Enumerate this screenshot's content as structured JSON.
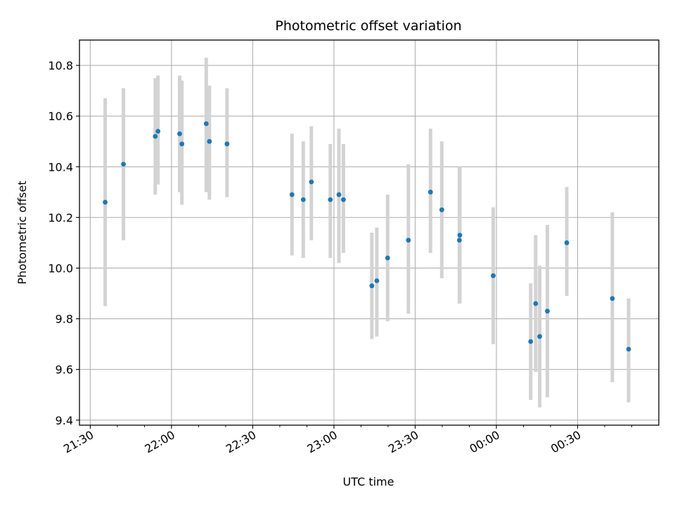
{
  "chart_data": {
    "type": "scatter",
    "title": "Photometric offset variation",
    "xlabel": "UTC time",
    "ylabel": "Photometric offset",
    "grid": true,
    "xlim": [
      "21:26",
      "01:00"
    ],
    "ylim": [
      9.38,
      10.9
    ],
    "x_ticks": [
      "21:30",
      "22:00",
      "22:30",
      "23:00",
      "23:30",
      "00:00",
      "00:30"
    ],
    "y_ticks": [
      "9.4",
      "9.6",
      "9.8",
      "10.0",
      "10.2",
      "10.4",
      "10.6",
      "10.8"
    ],
    "colors": {
      "points": "#1f77b4",
      "error_bars": "#d3d3d3",
      "grid": "#b0b0b0"
    },
    "points": [
      {
        "time": "21:35:30",
        "y": 10.26,
        "lower": 9.85,
        "upper": 10.67
      },
      {
        "time": "21:42:15",
        "y": 10.41,
        "lower": 10.11,
        "upper": 10.71
      },
      {
        "time": "21:54:00",
        "y": 10.52,
        "lower": 10.29,
        "upper": 10.75
      },
      {
        "time": "21:55:00",
        "y": 10.54,
        "lower": 10.33,
        "upper": 10.76
      },
      {
        "time": "22:03:00",
        "y": 10.53,
        "lower": 10.3,
        "upper": 10.76
      },
      {
        "time": "22:03:50",
        "y": 10.49,
        "lower": 10.25,
        "upper": 10.74
      },
      {
        "time": "22:12:50",
        "y": 10.57,
        "lower": 10.3,
        "upper": 10.83
      },
      {
        "time": "22:14:00",
        "y": 10.5,
        "lower": 10.27,
        "upper": 10.72
      },
      {
        "time": "22:20:30",
        "y": 10.49,
        "lower": 10.28,
        "upper": 10.71
      },
      {
        "time": "22:44:30",
        "y": 10.29,
        "lower": 10.05,
        "upper": 10.53
      },
      {
        "time": "22:48:40",
        "y": 10.27,
        "lower": 10.04,
        "upper": 10.5
      },
      {
        "time": "22:51:40",
        "y": 10.34,
        "lower": 10.11,
        "upper": 10.56
      },
      {
        "time": "22:58:40",
        "y": 10.27,
        "lower": 10.04,
        "upper": 10.49
      },
      {
        "time": "23:01:50",
        "y": 10.29,
        "lower": 10.02,
        "upper": 10.55
      },
      {
        "time": "23:03:30",
        "y": 10.27,
        "lower": 10.06,
        "upper": 10.49
      },
      {
        "time": "23:14:00",
        "y": 9.93,
        "lower": 9.72,
        "upper": 10.14
      },
      {
        "time": "23:15:50",
        "y": 9.95,
        "lower": 9.73,
        "upper": 10.16
      },
      {
        "time": "23:19:50",
        "y": 10.04,
        "lower": 9.79,
        "upper": 10.29
      },
      {
        "time": "23:27:30",
        "y": 10.11,
        "lower": 9.82,
        "upper": 10.41
      },
      {
        "time": "23:35:40",
        "y": 10.3,
        "lower": 10.06,
        "upper": 10.55
      },
      {
        "time": "23:39:50",
        "y": 10.23,
        "lower": 9.96,
        "upper": 10.5
      },
      {
        "time": "23:46:20",
        "y": 10.11,
        "lower": 9.86,
        "upper": 10.4
      },
      {
        "time": "23:46:30",
        "y": 10.13,
        "lower": 9.86,
        "upper": 10.4
      },
      {
        "time": "23:58:50",
        "y": 9.97,
        "lower": 9.7,
        "upper": 10.24
      },
      {
        "time": "00:12:40",
        "y": 9.71,
        "lower": 9.48,
        "upper": 9.94
      },
      {
        "time": "00:14:30",
        "y": 9.86,
        "lower": 9.59,
        "upper": 10.13
      },
      {
        "time": "00:16:00",
        "y": 9.73,
        "lower": 9.45,
        "upper": 10.01
      },
      {
        "time": "00:18:50",
        "y": 9.83,
        "lower": 9.49,
        "upper": 10.17
      },
      {
        "time": "00:26:00",
        "y": 10.1,
        "lower": 9.89,
        "upper": 10.32
      },
      {
        "time": "00:42:50",
        "y": 9.88,
        "lower": 9.55,
        "upper": 10.22
      },
      {
        "time": "00:48:50",
        "y": 9.68,
        "lower": 9.47,
        "upper": 9.88
      }
    ]
  }
}
